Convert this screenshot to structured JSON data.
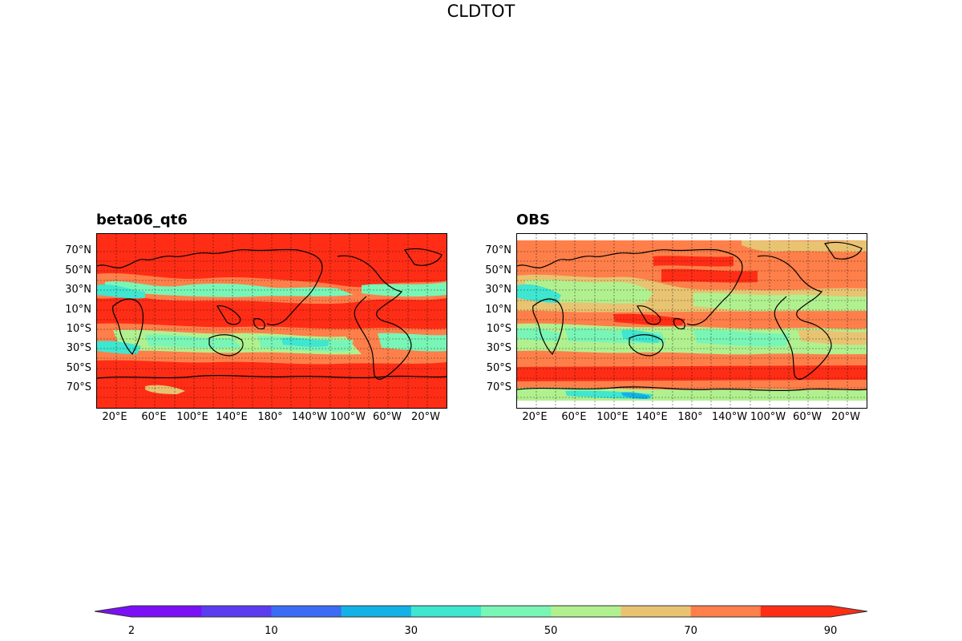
{
  "title": "CLDTOT",
  "panels": [
    {
      "title": "beta06_qt6"
    },
    {
      "title": "OBS"
    }
  ],
  "lat_ticks": [
    "70°N",
    "50°N",
    "30°N",
    "10°N",
    "10°S",
    "30°S",
    "50°S",
    "70°S"
  ],
  "lon_ticks": [
    "20°E",
    "60°E",
    "100°E",
    "140°E",
    "180°",
    "140°W",
    "100°W",
    "60°W",
    "20°W"
  ],
  "colorbar": {
    "levels": [
      2,
      5,
      10,
      20,
      30,
      40,
      50,
      60,
      70,
      80,
      90
    ],
    "tick_labels": [
      "2",
      "10",
      "30",
      "50",
      "70",
      "90"
    ],
    "colors": [
      "#7b0ff5",
      "#5b3cf0",
      "#3a6cf5",
      "#13b2e6",
      "#3fe6d0",
      "#79f5b6",
      "#b1f08f",
      "#e8c472",
      "#ff7f4a",
      "#ff2d16"
    ],
    "extend": "both"
  },
  "colors": {
    "red": "#ff2d16",
    "orange": "#ff7f4a",
    "tan": "#e8c472",
    "lightgreen": "#b1f08f",
    "green": "#79f5b6",
    "cyan": "#3fe6d0",
    "sky": "#13b2e6"
  }
}
